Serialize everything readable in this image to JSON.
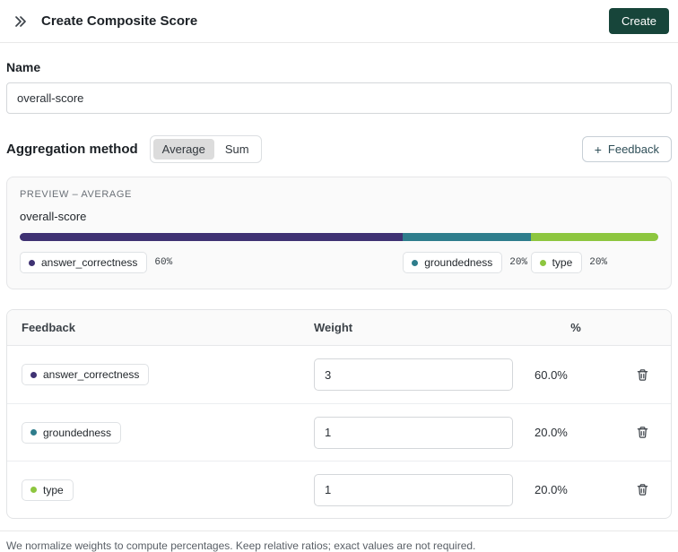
{
  "header": {
    "title": "Create Composite Score",
    "create_label": "Create"
  },
  "form": {
    "name_label": "Name",
    "name_value": "overall-score",
    "aggregation_label": "Aggregation method",
    "aggregation_options": {
      "average": "Average",
      "sum": "Sum",
      "selected": "Average"
    },
    "add_feedback_label": "Feedback"
  },
  "preview": {
    "kicker": "PREVIEW – AVERAGE",
    "name": "overall-score",
    "segments": [
      {
        "name": "answer_correctness",
        "percent_label": "60%",
        "value": 60,
        "color": "#3f3273"
      },
      {
        "name": "groundedness",
        "percent_label": "20%",
        "value": 20,
        "color": "#2e7d8c"
      },
      {
        "name": "type",
        "percent_label": "20%",
        "value": 20,
        "color": "#8dc63f"
      }
    ]
  },
  "table": {
    "headers": {
      "feedback": "Feedback",
      "weight": "Weight",
      "percent": "%"
    },
    "rows": [
      {
        "name": "answer_correctness",
        "color": "#3f3273",
        "weight": "3",
        "percent": "60.0%"
      },
      {
        "name": "groundedness",
        "color": "#2e7d8c",
        "weight": "1",
        "percent": "20.0%"
      },
      {
        "name": "type",
        "color": "#8dc63f",
        "weight": "1",
        "percent": "20.0%"
      }
    ]
  },
  "footer": {
    "note": "We normalize weights to compute percentages. Keep relative ratios; exact values are not required."
  }
}
